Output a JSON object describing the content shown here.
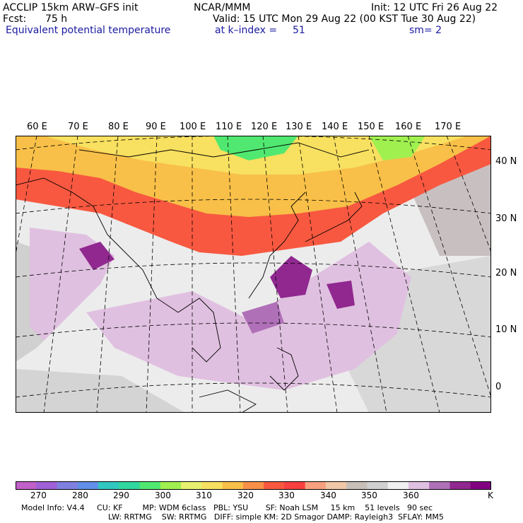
{
  "header": {
    "model": "ACCLIP 15km ARW–GFS init",
    "center": "NCAR/MMM",
    "init": "Init: 12 UTC Fri 26 Aug 22",
    "fcst_label": "Fcst:",
    "fcst_value": "75 h",
    "valid": "Valid: 15 UTC Mon 29 Aug 22 (00 KST Tue 30 Aug 22)",
    "field": "Equivalent potential temperature",
    "level": "at k–index =",
    "level_value": "51",
    "smooth": "sm= 2"
  },
  "map": {
    "lon_labels": [
      "60 E",
      "70 E",
      "80 E",
      "90 E",
      "100 E",
      "110 E",
      "120 E",
      "130 E",
      "140 E",
      "150 E",
      "160 E",
      "170 E"
    ],
    "lat_labels": [
      "40 N",
      "30 N",
      "20 N",
      "10 N",
      "0"
    ]
  },
  "colorbar": {
    "colors": [
      "#c060c8",
      "#a060d8",
      "#8080e0",
      "#6090e8",
      "#30c8c0",
      "#30d8a0",
      "#50e870",
      "#a0f050",
      "#e8f070",
      "#f8e060",
      "#f8c048",
      "#f89048",
      "#f85840",
      "#f84040",
      "#f8a080",
      "#f0c8a8",
      "#c8c0b8",
      "#d0d0d0",
      "#f0f0f0",
      "#e0c0e0",
      "#b070b8",
      "#902890",
      "#800080"
    ],
    "ticks": [
      "270",
      "280",
      "290",
      "300",
      "310",
      "320",
      "330",
      "340",
      "350",
      "360"
    ],
    "unit": "K"
  },
  "footer": {
    "line1": "Model Info: V4.4     CU: KF        MP: WDM 6class   PBL: YSU       SF: Noah LSM     15 km    51 levels   90 sec",
    "line2": "LW: RRTMG    SW: RRTMG   DIFF: simple KM: 2D Smagor DAMP: Rayleigh3  SFLAY: MM5"
  }
}
